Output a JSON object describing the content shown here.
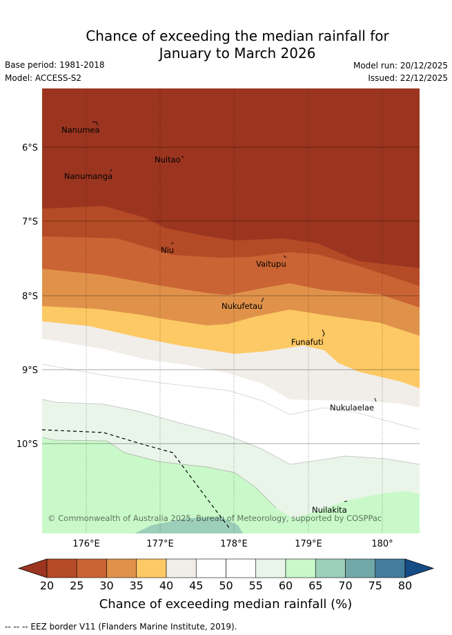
{
  "title": {
    "line1": "Chance of exceeding the median rainfall for",
    "line2": "January to March 2026"
  },
  "meta": {
    "base_period": "Base period: 1981-2018",
    "model": "Model: ACCESS-S2",
    "model_run": "Model run: 20/12/2025",
    "issued": "Issued: 22/12/2025"
  },
  "map": {
    "lat_labels": [
      "6°S",
      "7°S",
      "8°S",
      "9°S",
      "10°S"
    ],
    "lon_labels": [
      "176°E",
      "177°E",
      "178°E",
      "179°E",
      "180°"
    ],
    "places": [
      "Nanumea",
      "Nuitao",
      "Nanumanga",
      "Niu",
      "Vaitupu",
      "Nukufetau",
      "Funafuti",
      "Nukulaelae",
      "Nuilakita"
    ],
    "copyright": "© Commonwealth of Australia 2025, Bureau of Meteorology, supported by COSPPac"
  },
  "colorbar": {
    "ticks": [
      "20",
      "25",
      "30",
      "35",
      "40",
      "45",
      "50",
      "55",
      "60",
      "65",
      "70",
      "75",
      "80"
    ],
    "colors": [
      "#9b3520",
      "#b44a26",
      "#cb6434",
      "#e0924a",
      "#fdc964",
      "#f1ede8",
      "#ffffff",
      "#ffffff",
      "#eaf5ea",
      "#c9f9c9",
      "#9ccfb9",
      "#73a8a8",
      "#437c9c",
      "#164c86"
    ],
    "label": "Chance of exceeding median rainfall (%)"
  },
  "footnote": "--  --  -- EEZ border V11 (Flanders Marine Institute, 2019)."
}
